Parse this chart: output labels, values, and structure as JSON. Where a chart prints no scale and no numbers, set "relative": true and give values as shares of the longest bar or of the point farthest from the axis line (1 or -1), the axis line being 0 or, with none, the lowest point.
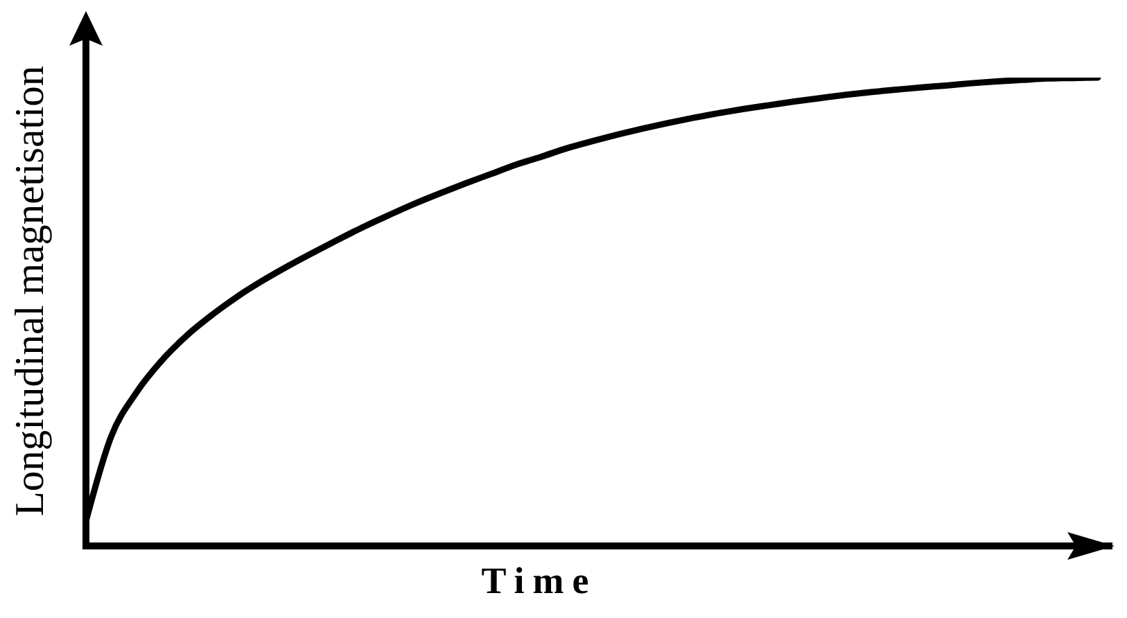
{
  "chart_data": {
    "type": "line",
    "xlabel": "Time",
    "ylabel": "Longitudinal magnetisation",
    "relative": true,
    "categories": [
      null,
      null,
      null,
      null,
      null,
      null,
      null,
      null,
      null,
      null,
      null,
      null,
      null,
      null,
      null,
      null,
      null,
      null,
      null,
      null,
      null,
      null,
      null,
      null,
      null,
      null,
      null,
      null,
      null,
      null,
      null,
      null,
      null,
      null,
      null,
      null,
      null,
      null,
      null,
      null,
      null
    ],
    "series": [
      {
        "color": "#000000",
        "values": [
          0.053,
          0.234,
          0.328,
          0.396,
          0.45,
          0.494,
          0.533,
          0.567,
          0.598,
          0.627,
          0.655,
          0.682,
          0.707,
          0.731,
          0.753,
          0.774,
          0.794,
          0.814,
          0.831,
          0.849,
          0.864,
          0.878,
          0.891,
          0.903,
          0.914,
          0.924,
          0.933,
          0.941,
          0.949,
          0.956,
          0.963,
          0.969,
          0.974,
          0.979,
          0.983,
          0.988,
          0.992,
          0.995,
          0.998,
          0.999,
          1.0
        ]
      }
    ]
  }
}
